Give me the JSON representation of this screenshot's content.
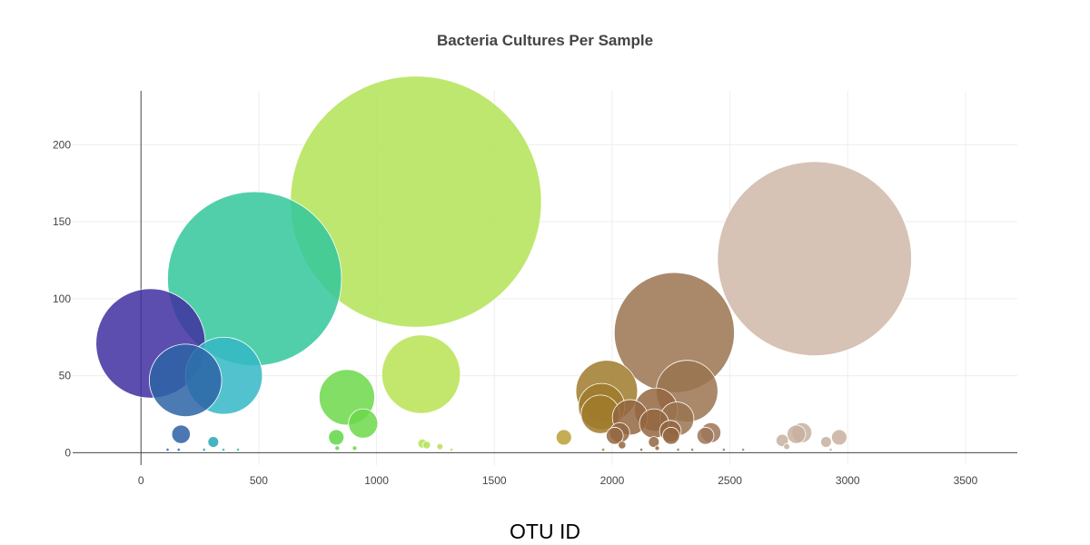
{
  "chart_data": {
    "type": "scatter",
    "subtype": "bubble",
    "title": "Bacteria Cultures Per Sample",
    "xlabel": "OTU ID",
    "ylabel": "",
    "xlim": [
      -290,
      3720
    ],
    "ylim": [
      -8,
      235
    ],
    "x_ticks": [
      0,
      500,
      1000,
      1500,
      2000,
      2500,
      3000,
      3500
    ],
    "y_ticks": [
      0,
      50,
      100,
      150,
      200
    ],
    "grid": true,
    "colorscale": "Earth (by OTU ID)",
    "points": [
      {
        "x": 41,
        "y": 71,
        "size": 71,
        "color": "#3f2fa0"
      },
      {
        "x": 189,
        "y": 47,
        "size": 47,
        "color": "#2d64a6"
      },
      {
        "x": 352,
        "y": 50,
        "size": 50,
        "color": "#34b8c6"
      },
      {
        "x": 482,
        "y": 113,
        "size": 113,
        "color": "#33c79c"
      },
      {
        "x": 1167,
        "y": 163,
        "size": 163,
        "color": "#b3e356"
      },
      {
        "x": 1189,
        "y": 51,
        "size": 51,
        "color": "#b8e354"
      },
      {
        "x": 874,
        "y": 36,
        "size": 36,
        "color": "#6cd84a"
      },
      {
        "x": 943,
        "y": 19,
        "size": 19,
        "color": "#6cd84a"
      },
      {
        "x": 170,
        "y": 12,
        "size": 12,
        "color": "#2d5fa6"
      },
      {
        "x": 307,
        "y": 7,
        "size": 7,
        "color": "#22a7b9"
      },
      {
        "x": 829,
        "y": 10,
        "size": 10,
        "color": "#5fd647"
      },
      {
        "x": 1795,
        "y": 10,
        "size": 10,
        "color": "#b8a038"
      },
      {
        "x": 2264,
        "y": 78,
        "size": 78,
        "color": "#9a7450"
      },
      {
        "x": 1977,
        "y": 40,
        "size": 40,
        "color": "#9f7a2a"
      },
      {
        "x": 1955,
        "y": 30,
        "size": 30,
        "color": "#9f7a2a"
      },
      {
        "x": 1950,
        "y": 25,
        "size": 25,
        "color": "#9f7a2a"
      },
      {
        "x": 2318,
        "y": 40,
        "size": 40,
        "color": "#9a7450"
      },
      {
        "x": 2186,
        "y": 28,
        "size": 28,
        "color": "#93663f"
      },
      {
        "x": 2178,
        "y": 19,
        "size": 19,
        "color": "#93663f"
      },
      {
        "x": 2076,
        "y": 23,
        "size": 23,
        "color": "#93663f"
      },
      {
        "x": 2275,
        "y": 22,
        "size": 22,
        "color": "#9a7450"
      },
      {
        "x": 2032,
        "y": 13,
        "size": 13,
        "color": "#93663f"
      },
      {
        "x": 2011,
        "y": 11,
        "size": 11,
        "color": "#93663f"
      },
      {
        "x": 2247,
        "y": 14,
        "size": 14,
        "color": "#93663f"
      },
      {
        "x": 2250,
        "y": 11,
        "size": 11,
        "color": "#93663f"
      },
      {
        "x": 2419,
        "y": 13,
        "size": 13,
        "color": "#9c7658"
      },
      {
        "x": 2396,
        "y": 11,
        "size": 11,
        "color": "#9c7658"
      },
      {
        "x": 2177,
        "y": 7,
        "size": 7,
        "color": "#93663f"
      },
      {
        "x": 2859,
        "y": 126,
        "size": 126,
        "color": "#cfb9a8"
      },
      {
        "x": 2805,
        "y": 13,
        "size": 13,
        "color": "#c8b09f"
      },
      {
        "x": 2782,
        "y": 12,
        "size": 12,
        "color": "#c8b09f"
      },
      {
        "x": 2964,
        "y": 10,
        "size": 10,
        "color": "#c8b09f"
      },
      {
        "x": 2722,
        "y": 8,
        "size": 8,
        "color": "#c8b09f"
      },
      {
        "x": 2908,
        "y": 7,
        "size": 7,
        "color": "#c8b09f"
      },
      {
        "x": 1195,
        "y": 6,
        "size": 6,
        "color": "#b3e356"
      },
      {
        "x": 1213,
        "y": 5,
        "size": 5,
        "color": "#b3e356"
      },
      {
        "x": 2042,
        "y": 5,
        "size": 5,
        "color": "#93663f"
      },
      {
        "x": 1269,
        "y": 4,
        "size": 4,
        "color": "#b8dd55"
      },
      {
        "x": 907,
        "y": 3,
        "size": 3,
        "color": "#6cd84a"
      },
      {
        "x": 833,
        "y": 3,
        "size": 3,
        "color": "#5fd647"
      },
      {
        "x": 2741,
        "y": 4,
        "size": 4,
        "color": "#c8b09f"
      },
      {
        "x": 2191,
        "y": 3,
        "size": 3,
        "color": "#93663f"
      },
      {
        "x": 2340,
        "y": 2,
        "size": 2,
        "color": "#9a7450"
      },
      {
        "x": 1962,
        "y": 2,
        "size": 2,
        "color": "#9f7a2a"
      },
      {
        "x": 113,
        "y": 2,
        "size": 2,
        "color": "#2d5fa6"
      },
      {
        "x": 160,
        "y": 2,
        "size": 2,
        "color": "#2d5fa6"
      },
      {
        "x": 268,
        "y": 2,
        "size": 2,
        "color": "#22a7b9"
      },
      {
        "x": 350,
        "y": 2,
        "size": 2,
        "color": "#34b8c6"
      },
      {
        "x": 412,
        "y": 2,
        "size": 2,
        "color": "#33c79c"
      },
      {
        "x": 1318,
        "y": 2,
        "size": 2,
        "color": "#b8dd55"
      },
      {
        "x": 2124,
        "y": 2,
        "size": 2,
        "color": "#93663f"
      },
      {
        "x": 2280,
        "y": 2,
        "size": 2,
        "color": "#9a7450"
      },
      {
        "x": 2474,
        "y": 2,
        "size": 2,
        "color": "#9c7658"
      },
      {
        "x": 2556,
        "y": 2,
        "size": 2,
        "color": "#a8866a"
      },
      {
        "x": 2928,
        "y": 2,
        "size": 2,
        "color": "#c8b09f"
      }
    ]
  }
}
